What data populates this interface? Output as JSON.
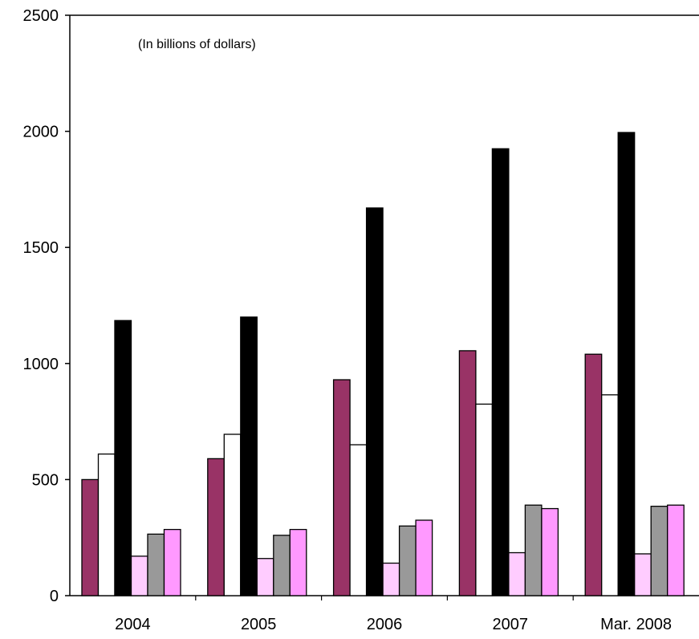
{
  "chart_data": {
    "type": "bar",
    "annotation": "(In billions of dollars)",
    "categories": [
      "2004",
      "2005",
      "2006",
      "2007",
      "Mar. 2008"
    ],
    "series": [
      {
        "color": "#993366",
        "values": [
          500,
          590,
          930,
          1055,
          1040
        ]
      },
      {
        "color": "#ffffff",
        "values": [
          610,
          695,
          650,
          825,
          865
        ]
      },
      {
        "color": "#000000",
        "values": [
          1185,
          1200,
          1670,
          1925,
          1995
        ]
      },
      {
        "color": "#ffccff",
        "values": [
          170,
          160,
          140,
          185,
          180
        ]
      },
      {
        "color": "#999999",
        "values": [
          265,
          260,
          300,
          390,
          385
        ]
      },
      {
        "color": "#ff99ff",
        "values": [
          285,
          285,
          325,
          375,
          390
        ]
      }
    ],
    "ylim": [
      0,
      2500
    ],
    "yticks": [
      0,
      500,
      1000,
      1500,
      2000,
      2500
    ],
    "grid": false,
    "legend": "none",
    "xlabel": "",
    "ylabel": ""
  }
}
